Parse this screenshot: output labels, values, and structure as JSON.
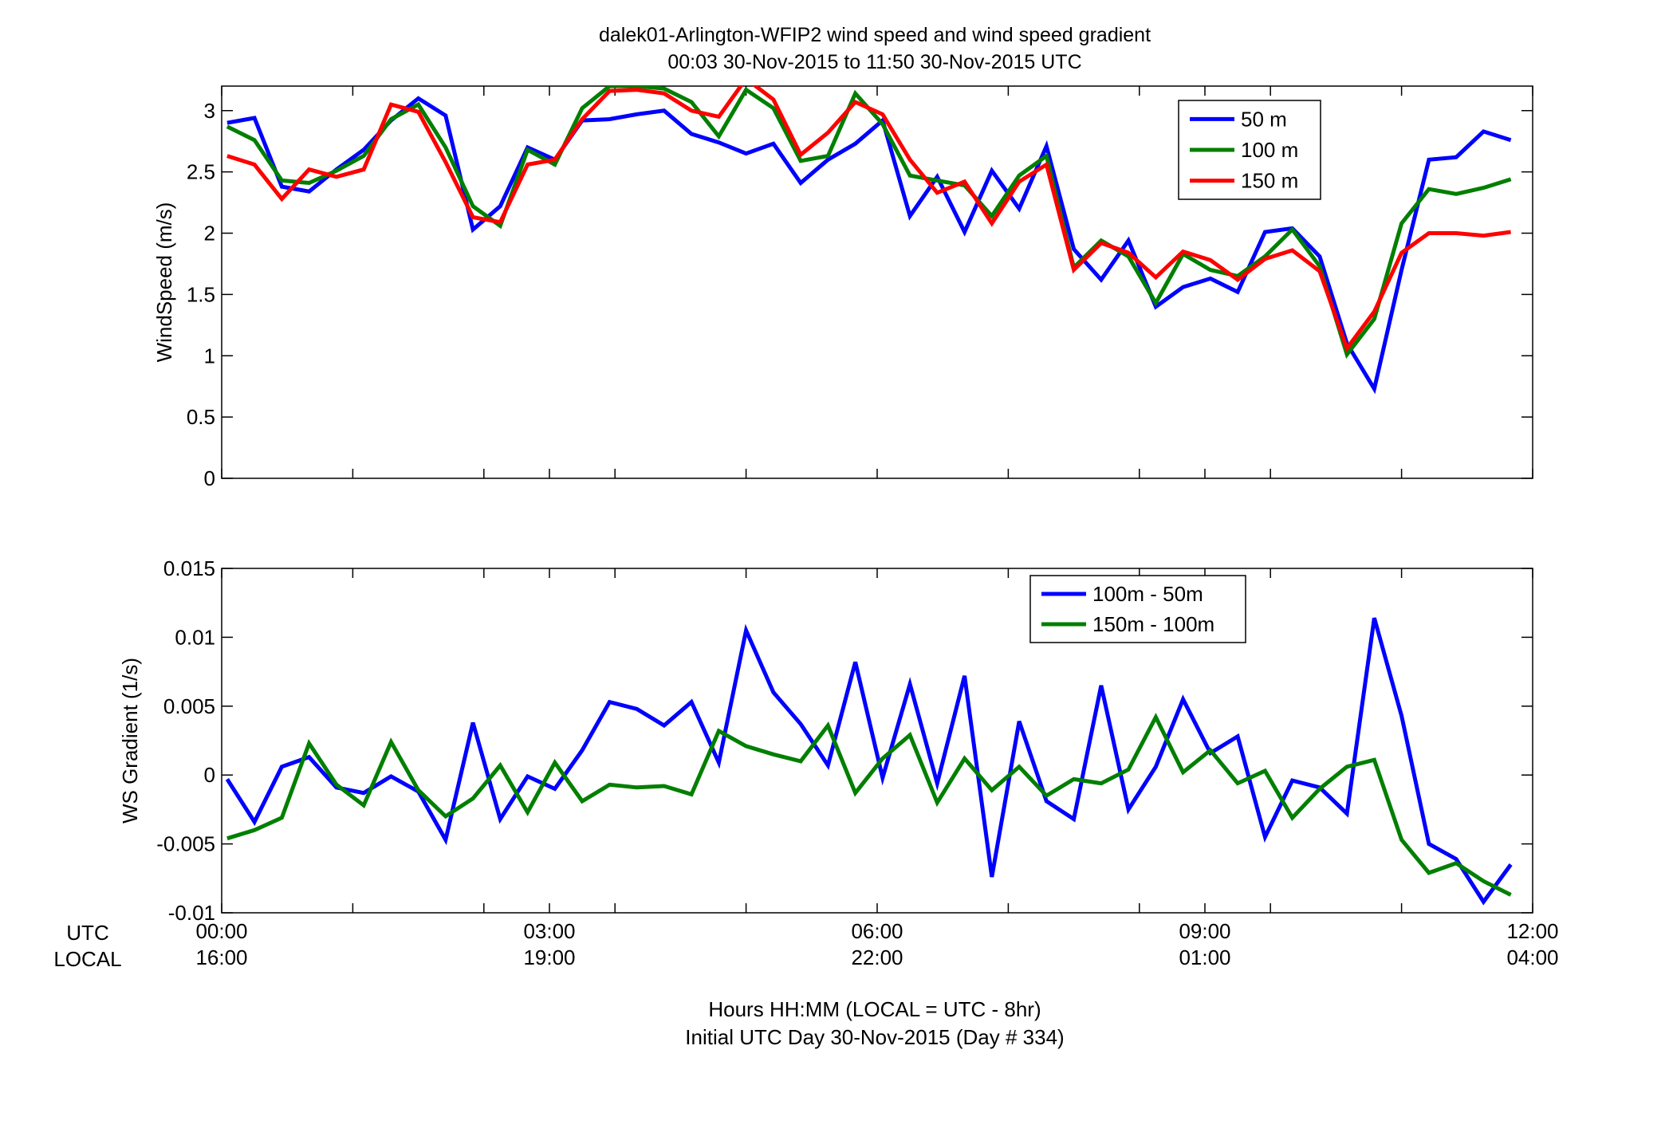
{
  "figure": {
    "title_line1": "dalek01-Arlington-WFIP2  wind speed and wind speed gradient",
    "title_line2": "00:03 30-Nov-2015 to 11:50 30-Nov-2015  UTC",
    "xlabel_line1": "Hours HH:MM  (LOCAL = UTC - 8hr)",
    "xlabel_line2": "Initial UTC Day 30-Nov-2015 (Day # 334)",
    "row_label_utc": "UTC",
    "row_label_local": "LOCAL",
    "x_ticks": [
      {
        "hour": 0,
        "utc": "00:00",
        "local": "16:00"
      },
      {
        "hour": 3,
        "utc": "03:00",
        "local": "19:00"
      },
      {
        "hour": 6,
        "utc": "06:00",
        "local": "22:00"
      },
      {
        "hour": 9,
        "utc": "09:00",
        "local": "01:00"
      },
      {
        "hour": 12,
        "utc": "12:00",
        "local": "04:00"
      }
    ]
  },
  "chart_data": [
    {
      "type": "line",
      "ylabel": "WindSpeed (m/s)",
      "xlim": [
        0,
        12
      ],
      "ylim": [
        0,
        3.2
      ],
      "y_ticks": [
        0,
        0.5,
        1,
        1.5,
        2,
        2.5,
        3
      ],
      "y_tick_labels": [
        "0",
        "0.5",
        "1",
        "1.5",
        "2",
        "2.5",
        "3"
      ],
      "x_minor_ticks": [
        1.2,
        2.4,
        3.6,
        4.8,
        6.0,
        7.2,
        8.4,
        9.6,
        10.8
      ],
      "grid": false,
      "legend_position": "top-right",
      "x": [
        0.05,
        0.3,
        0.55,
        0.8,
        1.05,
        1.3,
        1.55,
        1.8,
        2.05,
        2.3,
        2.55,
        2.8,
        3.05,
        3.3,
        3.55,
        3.8,
        4.05,
        4.3,
        4.55,
        4.8,
        5.05,
        5.3,
        5.55,
        5.8,
        6.05,
        6.3,
        6.55,
        6.8,
        7.05,
        7.3,
        7.55,
        7.8,
        8.05,
        8.3,
        8.55,
        8.8,
        9.05,
        9.3,
        9.55,
        9.8,
        10.05,
        10.3,
        10.55,
        10.8,
        11.05,
        11.3,
        11.55,
        11.8
      ],
      "series": [
        {
          "name": "50 m",
          "color": "#0000ff",
          "values": [
            2.9,
            2.94,
            2.38,
            2.34,
            2.52,
            2.68,
            2.92,
            3.1,
            2.96,
            2.03,
            2.22,
            2.7,
            2.6,
            2.92,
            2.93,
            2.97,
            3.0,
            2.81,
            2.74,
            2.65,
            2.73,
            2.41,
            2.6,
            2.73,
            2.92,
            2.14,
            2.46,
            2.01,
            2.51,
            2.2,
            2.71,
            1.87,
            1.62,
            1.94,
            1.4,
            1.56,
            1.63,
            1.52,
            2.01,
            2.04,
            1.81,
            1.1,
            0.73,
            1.7,
            2.6,
            2.62,
            2.83,
            2.76
          ]
        },
        {
          "name": "100 m",
          "color": "#007f00",
          "values": [
            2.87,
            2.76,
            2.43,
            2.41,
            2.51,
            2.63,
            2.93,
            3.05,
            2.7,
            2.22,
            2.06,
            2.68,
            2.56,
            3.02,
            3.2,
            3.2,
            3.18,
            3.07,
            2.79,
            3.17,
            3.02,
            2.59,
            2.63,
            3.14,
            2.89,
            2.47,
            2.43,
            2.39,
            2.14,
            2.47,
            2.63,
            1.72,
            1.94,
            1.81,
            1.43,
            1.83,
            1.7,
            1.65,
            1.81,
            2.03,
            1.73,
            1.01,
            1.3,
            2.08,
            2.36,
            2.32,
            2.37,
            2.44
          ]
        },
        {
          "name": "150 m",
          "color": "#ff0000",
          "values": [
            2.63,
            2.56,
            2.28,
            2.52,
            2.46,
            2.52,
            3.05,
            2.99,
            2.58,
            2.13,
            2.09,
            2.56,
            2.6,
            2.93,
            3.16,
            3.17,
            3.14,
            3.0,
            2.95,
            3.26,
            3.09,
            2.64,
            2.82,
            3.07,
            2.97,
            2.6,
            2.33,
            2.42,
            2.08,
            2.42,
            2.56,
            1.7,
            1.92,
            1.84,
            1.64,
            1.85,
            1.78,
            1.62,
            1.79,
            1.86,
            1.69,
            1.06,
            1.36,
            1.84,
            2.0,
            2.0,
            1.98,
            2.01
          ]
        }
      ]
    },
    {
      "type": "line",
      "ylabel": "WS Gradient (1/s)",
      "xlim": [
        0,
        12
      ],
      "ylim": [
        -0.01,
        0.015
      ],
      "y_ticks": [
        -0.01,
        -0.005,
        0,
        0.005,
        0.01,
        0.015
      ],
      "y_tick_labels": [
        "-0.01",
        "-0.005",
        "0",
        "0.005",
        "0.01",
        "0.015"
      ],
      "x_minor_ticks": [
        1.2,
        2.4,
        3.6,
        4.8,
        6.0,
        7.2,
        8.4,
        9.6,
        10.8
      ],
      "grid": false,
      "legend_position": "top-right",
      "x": [
        0.05,
        0.3,
        0.55,
        0.8,
        1.05,
        1.3,
        1.55,
        1.8,
        2.05,
        2.3,
        2.55,
        2.8,
        3.05,
        3.3,
        3.55,
        3.8,
        4.05,
        4.3,
        4.55,
        4.8,
        5.05,
        5.3,
        5.55,
        5.8,
        6.05,
        6.3,
        6.55,
        6.8,
        7.05,
        7.3,
        7.55,
        7.8,
        8.05,
        8.3,
        8.55,
        8.8,
        9.05,
        9.3,
        9.55,
        9.8,
        10.05,
        10.3,
        10.55,
        10.8,
        11.05,
        11.3,
        11.55,
        11.8
      ],
      "series": [
        {
          "name": "100m - 50m",
          "color": "#0000ff",
          "values": [
            -0.0003,
            -0.0034,
            0.0006,
            0.0013,
            -0.0009,
            -0.0013,
            -0.0001,
            -0.0012,
            -0.0047,
            0.0038,
            -0.0032,
            -0.0001,
            -0.001,
            0.0018,
            0.0053,
            0.0048,
            0.0036,
            0.0053,
            0.0009,
            0.0105,
            0.006,
            0.0037,
            0.0007,
            0.0082,
            -0.0002,
            0.0066,
            -0.0006,
            0.0072,
            -0.0074,
            0.0039,
            -0.0019,
            -0.0032,
            0.0065,
            -0.0025,
            0.0006,
            0.0055,
            0.0016,
            0.0028,
            -0.0045,
            -0.0004,
            -0.0009,
            -0.0028,
            0.0114,
            0.0043,
            -0.005,
            -0.0061,
            -0.0092,
            -0.0065
          ]
        },
        {
          "name": "150m - 100m",
          "color": "#007f00",
          "values": [
            -0.0046,
            -0.004,
            -0.0031,
            0.0023,
            -0.0007,
            -0.0022,
            0.0024,
            -0.0011,
            -0.003,
            -0.0017,
            0.0007,
            -0.0027,
            0.0009,
            -0.0019,
            -0.0007,
            -0.0009,
            -0.0008,
            -0.0014,
            0.0032,
            0.0021,
            0.0015,
            0.001,
            0.0036,
            -0.0013,
            0.0012,
            0.0029,
            -0.002,
            0.0012,
            -0.0011,
            0.0006,
            -0.0015,
            -0.0003,
            -0.0006,
            0.0004,
            0.0042,
            0.0002,
            0.0018,
            -0.0006,
            0.0003,
            -0.0031,
            -0.001,
            0.0006,
            0.0011,
            -0.0047,
            -0.0071,
            -0.0064,
            -0.0077,
            -0.0087
          ]
        }
      ]
    }
  ]
}
